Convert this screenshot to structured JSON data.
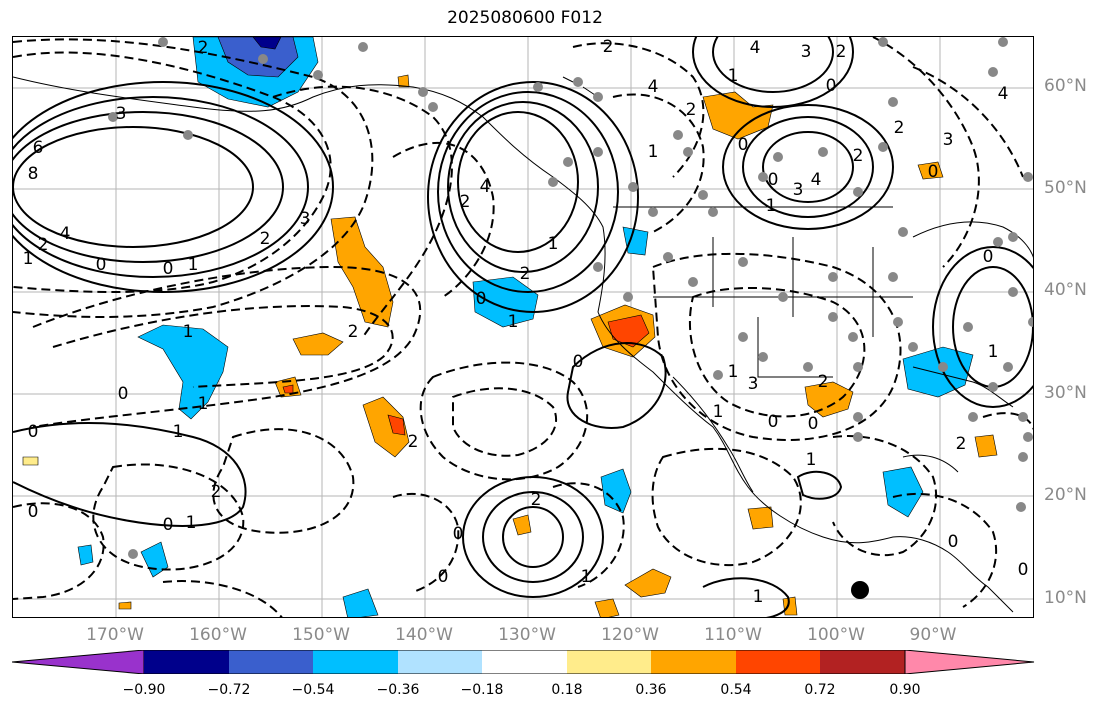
{
  "title": "2025080600 F012",
  "lat_labels": [
    "60°N",
    "50°N",
    "40°N",
    "30°N",
    "20°N",
    "10°N"
  ],
  "lon_labels": [
    "170°W",
    "160°W",
    "150°W",
    "140°W",
    "130°W",
    "120°W",
    "110°W",
    "100°W",
    "90°W"
  ],
  "colorbar": {
    "colors": [
      "#9932cc",
      "#00008b",
      "#3a5fcd",
      "#00bfff",
      "#b0e2ff",
      "#ffffff",
      "#ffec8b",
      "#ffa500",
      "#ff4500",
      "#b22222",
      "#ff88aa"
    ],
    "tick_labels": [
      "−0.90",
      "−0.72",
      "−0.54",
      "−0.36",
      "−0.18",
      "0.18",
      "0.36",
      "0.54",
      "0.72",
      "0.90"
    ]
  },
  "contour_labels": [
    {
      "text": "2"
    },
    {
      "text": "3"
    },
    {
      "text": "6"
    },
    {
      "text": "8"
    },
    {
      "text": "4"
    },
    {
      "text": "2"
    },
    {
      "text": "1"
    },
    {
      "text": "0"
    },
    {
      "text": "0"
    },
    {
      "text": "1"
    },
    {
      "text": "3"
    },
    {
      "text": "2"
    },
    {
      "text": "0"
    },
    {
      "text": "0"
    },
    {
      "text": "1"
    },
    {
      "text": "1"
    },
    {
      "text": "2"
    },
    {
      "text": "1"
    },
    {
      "text": "0"
    },
    {
      "text": "1"
    },
    {
      "text": "2"
    },
    {
      "text": "0"
    },
    {
      "text": "4"
    },
    {
      "text": "2"
    },
    {
      "text": "0"
    },
    {
      "text": "1"
    },
    {
      "text": "2"
    },
    {
      "text": "1"
    },
    {
      "text": "0"
    },
    {
      "text": "2"
    },
    {
      "text": "1"
    },
    {
      "text": "0"
    },
    {
      "text": "1"
    },
    {
      "text": "2"
    },
    {
      "text": "4"
    },
    {
      "text": "3"
    },
    {
      "text": "2"
    },
    {
      "text": "0"
    },
    {
      "text": "4"
    },
    {
      "text": "2"
    },
    {
      "text": "0"
    },
    {
      "text": "3"
    },
    {
      "text": "4"
    },
    {
      "text": "3"
    },
    {
      "text": "1"
    },
    {
      "text": "2"
    },
    {
      "text": "1"
    },
    {
      "text": "0"
    },
    {
      "text": "1"
    },
    {
      "text": "2"
    },
    {
      "text": "3"
    },
    {
      "text": "4"
    },
    {
      "text": "0"
    },
    {
      "text": "0"
    },
    {
      "text": "1"
    },
    {
      "text": "2"
    },
    {
      "text": "1"
    },
    {
      "text": "0"
    },
    {
      "text": "0"
    },
    {
      "text": "2"
    },
    {
      "text": "0"
    },
    {
      "text": "1"
    },
    {
      "text": "0"
    },
    {
      "text": "2"
    },
    {
      "text": "1"
    },
    {
      "text": "0"
    }
  ]
}
